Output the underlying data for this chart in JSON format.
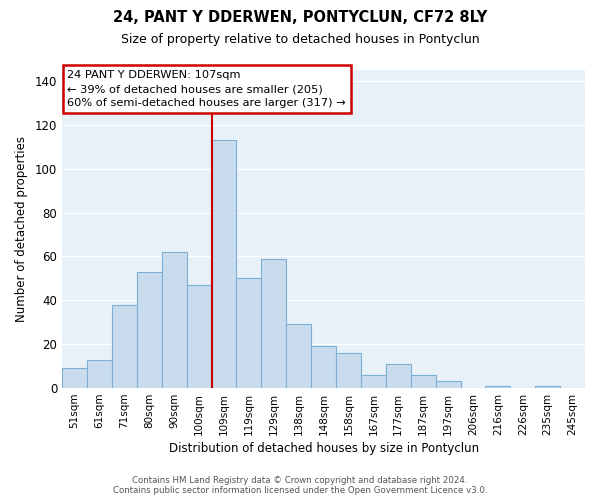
{
  "title_line1": "24, PANT Y DDERWEN, PONTYCLUN, CF72 8LY",
  "title_line2": "Size of property relative to detached houses in Pontyclun",
  "xlabel": "Distribution of detached houses by size in Pontyclun",
  "ylabel": "Number of detached properties",
  "bar_labels": [
    "51sqm",
    "61sqm",
    "71sqm",
    "80sqm",
    "90sqm",
    "100sqm",
    "109sqm",
    "119sqm",
    "129sqm",
    "138sqm",
    "148sqm",
    "158sqm",
    "167sqm",
    "177sqm",
    "187sqm",
    "197sqm",
    "206sqm",
    "216sqm",
    "226sqm",
    "235sqm",
    "245sqm"
  ],
  "bar_values": [
    9,
    13,
    38,
    53,
    62,
    47,
    113,
    50,
    59,
    29,
    19,
    16,
    6,
    11,
    6,
    3,
    0,
    1,
    0,
    1,
    0
  ],
  "bar_color": "#c9dced",
  "bar_edge_color": "#7bafd4",
  "highlight_bar_index": 6,
  "highlight_line_color": "#cc0000",
  "ylim": [
    0,
    145
  ],
  "yticks": [
    0,
    20,
    40,
    60,
    80,
    100,
    120,
    140
  ],
  "annotation_title": "24 PANT Y DDERWEN: 107sqm",
  "annotation_line1": "← 39% of detached houses are smaller (205)",
  "annotation_line2": "60% of semi-detached houses are larger (317) →",
  "annotation_box_color": "#ffffff",
  "annotation_box_edge": "#cc0000",
  "footer_line1": "Contains HM Land Registry data © Crown copyright and database right 2024.",
  "footer_line2": "Contains public sector information licensed under the Open Government Licence v3.0.",
  "plot_bg_color": "#e8f0f8",
  "background_color": "#ffffff",
  "grid_color": "#ffffff"
}
